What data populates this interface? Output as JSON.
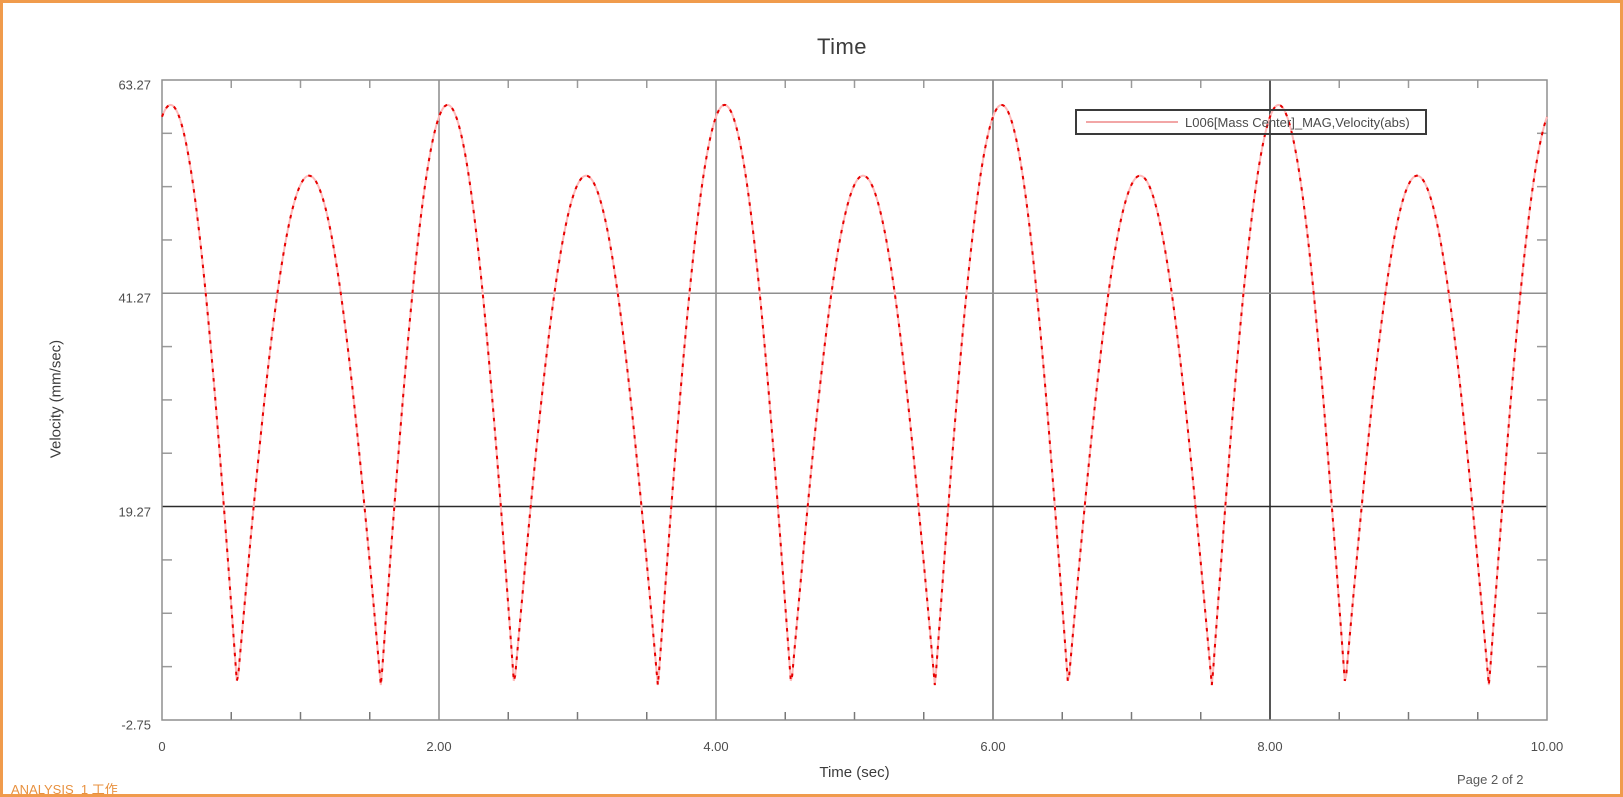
{
  "window": {
    "border_color": "#f09b4c",
    "background": "#ffffff"
  },
  "header": {
    "title": "Time"
  },
  "axes": {
    "x": {
      "label": "Time (sec)",
      "ticks": [
        0,
        2,
        4,
        6,
        8,
        10
      ],
      "tick_labels": [
        "0",
        "2.00",
        "4.00",
        "6.00",
        "8.00",
        "10.00"
      ],
      "minor_step": 0.5,
      "range": [
        0,
        10
      ]
    },
    "y": {
      "label": "Velocity (mm/sec)",
      "ticks": [
        63.27,
        41.27,
        19.27,
        -2.75
      ],
      "tick_labels": [
        "63.27",
        "41.27",
        "19.27",
        "-2.75"
      ],
      "minors_per_gap": 3,
      "range": [
        -2.75,
        63.27
      ]
    }
  },
  "gridlines": {
    "vertical": [
      {
        "t": 2,
        "color": "#a8a8a8",
        "width": 2
      },
      {
        "t": 4,
        "color": "#a8a8a8",
        "width": 2
      },
      {
        "t": 6,
        "color": "#949494",
        "width": 2
      },
      {
        "t": 8,
        "color": "#1f1f1f",
        "width": 1.5
      }
    ],
    "horizontal": [
      {
        "v": 41.27,
        "color": "#8f8f8f",
        "width": 1.5
      },
      {
        "v": 19.27,
        "color": "#2b2b2b",
        "width": 1.5
      }
    ]
  },
  "legend": {
    "label": "L006[Mass Center]_MAG,Velocity(abs)",
    "sample_line_color": "#f2a6a6"
  },
  "footer": {
    "left": "ANALYSIS_1 工作",
    "right": "Page 2 of 2"
  },
  "chart_data": {
    "type": "line",
    "title": "Time",
    "xlabel": "Time (sec)",
    "ylabel": "Velocity (mm/sec)",
    "xlim": [
      0,
      10
    ],
    "ylim": [
      -2.75,
      63.27
    ],
    "x_ticks": [
      0,
      2.0,
      4.0,
      6.0,
      8.0,
      10.0
    ],
    "y_ticks": [
      -2.75,
      19.27,
      41.27,
      63.27
    ],
    "grid": "major",
    "legend_position": "top-right",
    "series": [
      {
        "name": "L006[Mass Center]_MAG,Velocity(abs)",
        "color": "#e60000",
        "underlay_color": "#ffb9b9",
        "dash": [
          3.5,
          6
        ],
        "waveform": {
          "comment": "abs-velocity pattern: alternating high/low sine humps between sharp troughs",
          "period": 2,
          "troughs_mod2": [
            0.543,
            1.581
          ],
          "peak_values": [
            60.7,
            53.4
          ],
          "trough_value": 0.7,
          "sample_step": 0.01
        },
        "key_points": [
          [
            0,
            59.5
          ],
          [
            0.06,
            60.7
          ],
          [
            0.54,
            0.7
          ],
          [
            1.06,
            53.4
          ],
          [
            1.58,
            0.7
          ],
          [
            2.06,
            60.7
          ],
          [
            2.54,
            0.7
          ],
          [
            3.06,
            53.4
          ],
          [
            3.58,
            0.7
          ],
          [
            4.06,
            60.7
          ],
          [
            4.54,
            0.7
          ],
          [
            5.06,
            53.4
          ],
          [
            5.58,
            0.7
          ],
          [
            6.06,
            60.7
          ],
          [
            6.54,
            0.7
          ],
          [
            7.06,
            53.4
          ],
          [
            7.58,
            0.7
          ],
          [
            8.06,
            60.7
          ],
          [
            8.54,
            0.7
          ],
          [
            9.06,
            53.4
          ],
          [
            9.58,
            0.7
          ],
          [
            10,
            59.5
          ]
        ]
      }
    ]
  }
}
